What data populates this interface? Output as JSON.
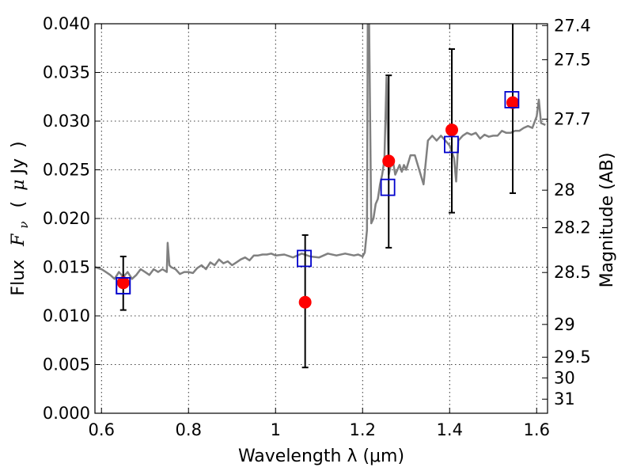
{
  "chart_data": {
    "type": "scatter",
    "title": "",
    "xlabel": "Wavelength  λ (μm)",
    "ylabel": "Flux  F_ν  ( μJy )",
    "ylabel_parts": {
      "pre": "Flux",
      "sym": "F",
      "sub": "ν",
      "open": "(",
      "mu": "μ",
      "unit": "Jy",
      "close": ")"
    },
    "y2label": "Magnitude (AB)",
    "xlim": [
      0.585,
      1.625
    ],
    "ylim": [
      0.0,
      0.04
    ],
    "grid": true,
    "x_ticks": [
      0.6,
      0.8,
      1.0,
      1.2,
      1.4,
      1.6
    ],
    "x_tick_labels": [
      "0.6",
      "0.8",
      "1",
      "1.2",
      "1.4",
      "1.6"
    ],
    "y_ticks": [
      0.0,
      0.005,
      0.01,
      0.015,
      0.02,
      0.025,
      0.03,
      0.035,
      0.04
    ],
    "y_tick_labels": [
      "0.000",
      "0.005",
      "0.010",
      "0.015",
      "0.020",
      "0.025",
      "0.030",
      "0.035",
      "0.040"
    ],
    "y2_ticks": [
      27.4,
      27.5,
      27.7,
      28,
      28.2,
      28.5,
      29,
      29.5,
      30,
      31
    ],
    "y2_tick_labels": [
      "27.4",
      "27.5",
      "27.7",
      "28",
      "28.2",
      "28.5",
      "29",
      "29.5",
      "30",
      "31"
    ],
    "series": [
      {
        "kind": "line",
        "color": "#808080",
        "x": [
          0.585,
          0.6,
          0.61,
          0.62,
          0.63,
          0.64,
          0.65,
          0.66,
          0.67,
          0.68,
          0.69,
          0.7,
          0.71,
          0.72,
          0.73,
          0.74,
          0.75,
          0.752,
          0.756,
          0.76,
          0.77,
          0.78,
          0.79,
          0.8,
          0.81,
          0.82,
          0.83,
          0.84,
          0.85,
          0.86,
          0.87,
          0.88,
          0.89,
          0.9,
          0.91,
          0.92,
          0.93,
          0.94,
          0.95,
          0.96,
          0.97,
          0.98,
          0.99,
          1.0,
          1.02,
          1.04,
          1.06,
          1.08,
          1.1,
          1.12,
          1.14,
          1.16,
          1.18,
          1.19,
          1.2,
          1.205,
          1.21,
          1.212,
          1.215,
          1.22,
          1.225,
          1.23,
          1.235,
          1.24,
          1.245,
          1.25,
          1.255,
          1.26,
          1.265,
          1.27,
          1.275,
          1.28,
          1.285,
          1.29,
          1.295,
          1.3,
          1.31,
          1.32,
          1.33,
          1.34,
          1.35,
          1.36,
          1.37,
          1.38,
          1.39,
          1.4,
          1.41,
          1.415,
          1.42,
          1.43,
          1.44,
          1.45,
          1.46,
          1.47,
          1.48,
          1.49,
          1.5,
          1.51,
          1.52,
          1.53,
          1.54,
          1.55,
          1.56,
          1.57,
          1.58,
          1.59,
          1.6,
          1.605,
          1.61,
          1.62
        ],
        "y": [
          0.015,
          0.0148,
          0.0145,
          0.0142,
          0.0138,
          0.0145,
          0.014,
          0.0145,
          0.0138,
          0.0142,
          0.0148,
          0.0145,
          0.0142,
          0.0148,
          0.0145,
          0.0148,
          0.0145,
          0.0175,
          0.0152,
          0.015,
          0.0148,
          0.0143,
          0.0145,
          0.0145,
          0.0144,
          0.0149,
          0.0152,
          0.0148,
          0.0155,
          0.0152,
          0.0158,
          0.0154,
          0.0156,
          0.0152,
          0.0155,
          0.0158,
          0.016,
          0.0157,
          0.0162,
          0.0162,
          0.0163,
          0.0163,
          0.0164,
          0.0162,
          0.0163,
          0.016,
          0.0164,
          0.0161,
          0.016,
          0.0164,
          0.0162,
          0.0164,
          0.0162,
          0.0163,
          0.0161,
          0.0165,
          0.0188,
          0.04,
          0.04,
          0.0195,
          0.02,
          0.0215,
          0.022,
          0.0235,
          0.0245,
          0.026,
          0.0345,
          0.0245,
          0.0255,
          0.0258,
          0.0245,
          0.025,
          0.0255,
          0.0248,
          0.0255,
          0.025,
          0.0265,
          0.0265,
          0.025,
          0.0235,
          0.028,
          0.0285,
          0.028,
          0.0285,
          0.028,
          0.0275,
          0.0262,
          0.0238,
          0.028,
          0.0285,
          0.0288,
          0.0286,
          0.0288,
          0.0282,
          0.0286,
          0.0284,
          0.0285,
          0.0285,
          0.029,
          0.0288,
          0.0288,
          0.029,
          0.029,
          0.0293,
          0.0295,
          0.0293,
          0.0305,
          0.0322,
          0.0298,
          0.0296
        ]
      },
      {
        "kind": "points",
        "marker": "circle",
        "color": "#ff0000",
        "x": [
          0.65,
          1.068,
          1.26,
          1.405,
          1.545
        ],
        "y": [
          0.0134,
          0.0114,
          0.0259,
          0.0291,
          0.0319
        ],
        "err_low": [
          0.0028,
          0.0067,
          0.0089,
          0.0085,
          0.0093
        ],
        "err_high": [
          0.0027,
          0.0069,
          0.0088,
          0.0083,
          0.0085
        ]
      },
      {
        "kind": "points",
        "marker": "square-open",
        "color": "#0000cc",
        "x": [
          0.65,
          1.066,
          1.258,
          1.404,
          1.543
        ],
        "y": [
          0.0131,
          0.0159,
          0.0232,
          0.0276,
          0.0322
        ]
      }
    ]
  }
}
